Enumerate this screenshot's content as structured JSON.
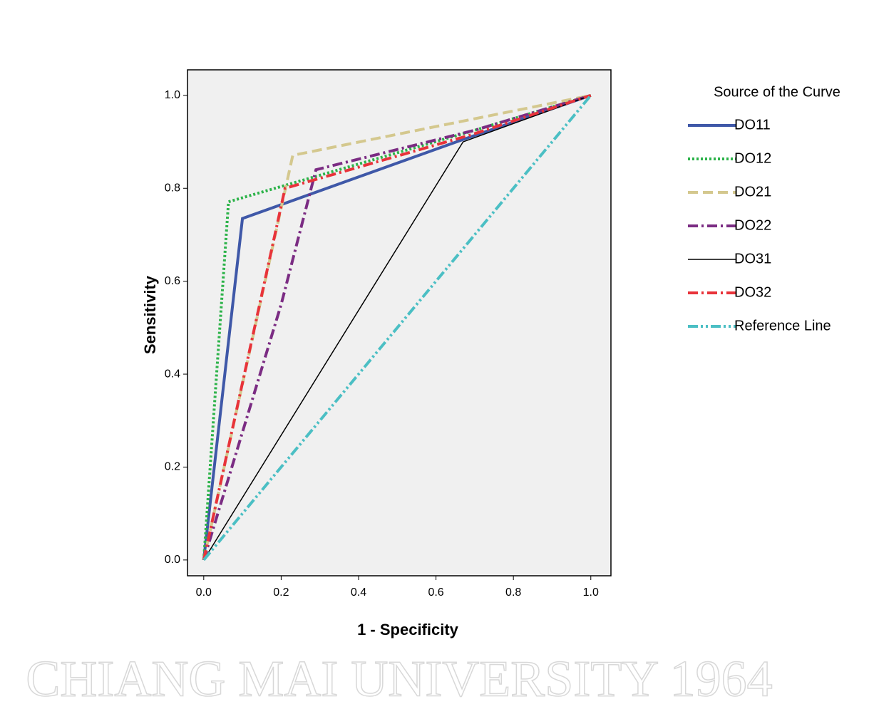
{
  "chart_data": {
    "type": "line",
    "watermark": "CHIANG MAI UNIVERSITY 1964",
    "x_label": "1 - Specificity",
    "y_label": "Sensitivity",
    "legend_title": "Source of the Curve",
    "legend": "right",
    "xlim": [
      -0.042,
      1.052
    ],
    "ylim": [
      -0.034,
      1.055
    ],
    "xticks": [
      {
        "value": 0,
        "label": "0.0"
      },
      0.2,
      0.4,
      0.6,
      0.8,
      {
        "value": 1,
        "label": "1.0"
      }
    ],
    "yticks": [
      {
        "value": 0,
        "label": "0.0"
      },
      0.2,
      0.4,
      0.6,
      0.8,
      {
        "value": 1,
        "label": "1.0"
      }
    ],
    "background": "#f0f0f0",
    "series": [
      {
        "name": "DO11",
        "color": "#3f58a8",
        "dash": "solid",
        "x": [
          0,
          0.1,
          0.67,
          1
        ],
        "values": [
          0,
          0.735,
          0.905,
          1
        ]
      },
      {
        "name": "DO12",
        "color": "#2db34a",
        "dash": "dotted",
        "x": [
          0,
          0.064,
          0.68,
          1
        ],
        "values": [
          0,
          0.771,
          0.92,
          1
        ]
      },
      {
        "name": "DO21",
        "color": "#d4c88e",
        "dash": "dashed",
        "x": [
          0,
          0.23,
          1
        ],
        "values": [
          0,
          0.871,
          1
        ]
      },
      {
        "name": "DO22",
        "color": "#7b2c83",
        "dash": "dashdot",
        "x": [
          0,
          0.2,
          0.29,
          0.7,
          1
        ],
        "values": [
          0,
          0.55,
          0.84,
          0.925,
          1
        ]
      },
      {
        "name": "DO31",
        "color": "#000000",
        "dash": "solid",
        "x": [
          0,
          0.67,
          1
        ],
        "values": [
          0,
          0.9,
          1
        ]
      },
      {
        "name": "DO32",
        "color": "#e8333a",
        "dash": "dashdot",
        "x": [
          0,
          0.21,
          0.69,
          1
        ],
        "values": [
          0,
          0.8,
          0.915,
          1
        ]
      },
      {
        "name": "Reference Line",
        "color": "#4bbfc4",
        "dash": "dashdotdot",
        "x": [
          0,
          1
        ],
        "values": [
          0,
          1
        ]
      }
    ]
  }
}
